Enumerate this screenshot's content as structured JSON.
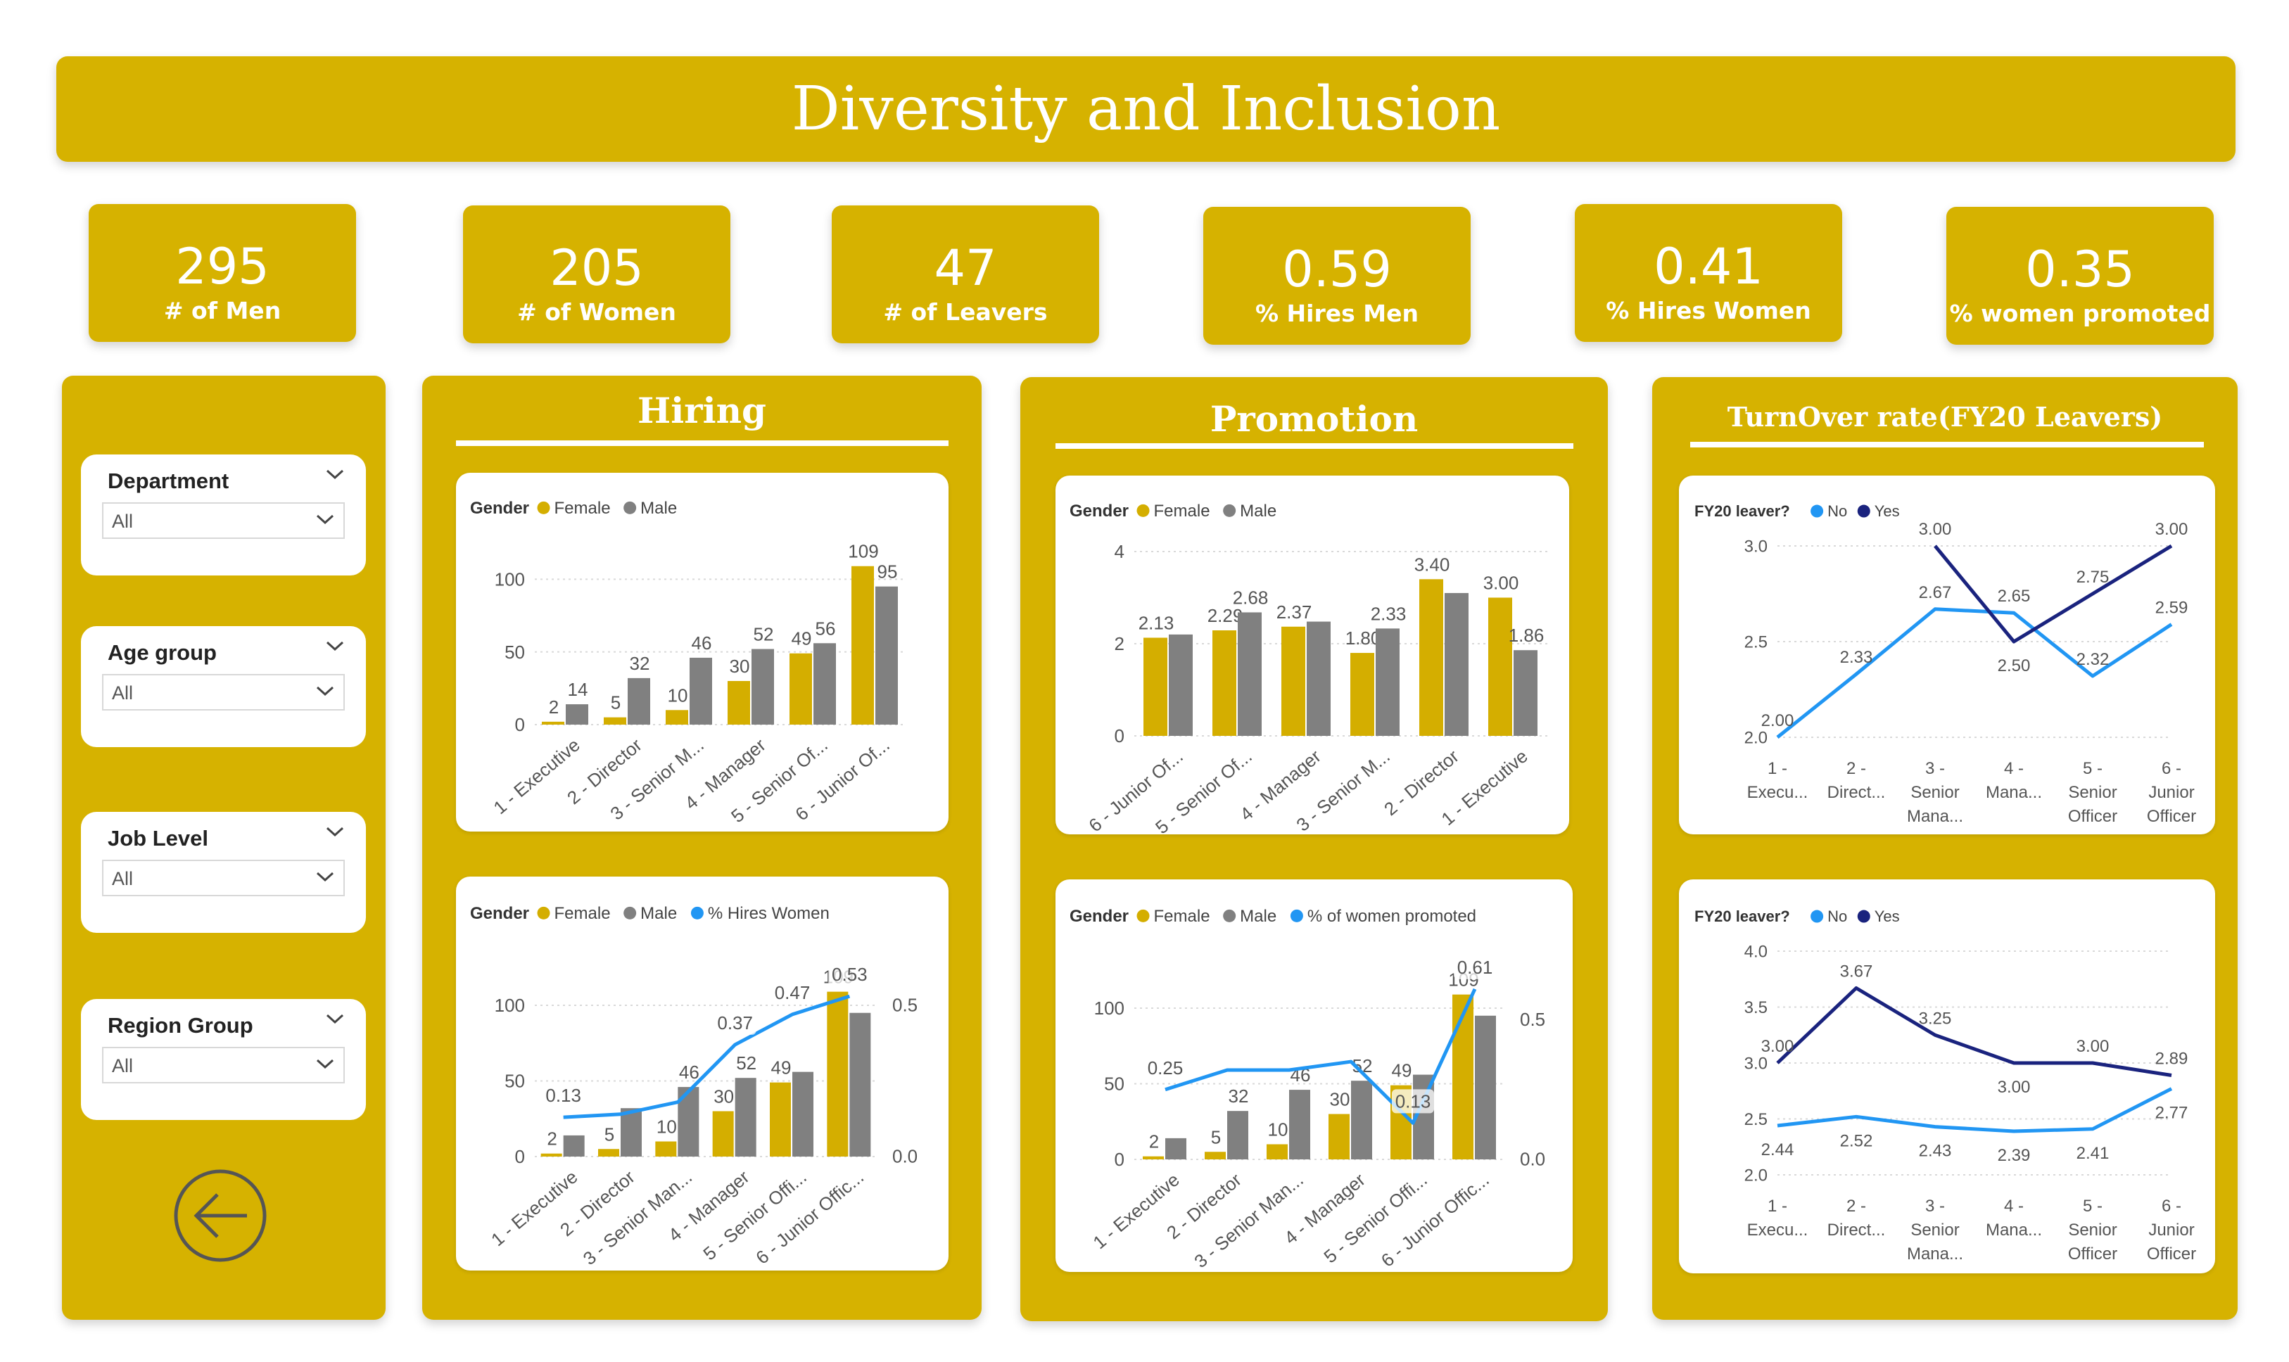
{
  "page": {
    "title": "Diversity and Inclusion"
  },
  "colors": {
    "gold": "#D6B200",
    "female": "#D4AE00",
    "male": "#808080",
    "line_light": "#2196F3",
    "line_dark": "#1A237E"
  },
  "kpis": [
    {
      "value": "295",
      "label": "# of Men"
    },
    {
      "value": "205",
      "label": "# of Women"
    },
    {
      "value": "47",
      "label": "# of Leavers"
    },
    {
      "value": "0.59",
      "label": "% Hires Men"
    },
    {
      "value": "0.41",
      "label": "% Hires Women"
    },
    {
      "value": "0.35",
      "label": "% women promoted"
    }
  ],
  "filters": [
    {
      "title": "Department",
      "value": "All"
    },
    {
      "title": "Age group",
      "value": "All"
    },
    {
      "title": "Job Level",
      "value": "All"
    },
    {
      "title": "Region Group",
      "value": "All"
    }
  ],
  "icons": {
    "back": "back-arrow-icon",
    "chevron": "chevron-down-icon"
  },
  "panels": {
    "hiring": "Hiring",
    "promotion": "Promotion",
    "turnover": "TurnOver rate(FY20 Leavers)"
  },
  "chart_data": [
    {
      "id": "hiring_bar",
      "type": "bar",
      "legend_title": "Gender",
      "categories": [
        "1 - Executive",
        "2 - Director",
        "3 - Senior M...",
        "4 - Manager",
        "5 - Senior Of...",
        "6 - Junior Of..."
      ],
      "series": [
        {
          "name": "Female",
          "values": [
            2,
            5,
            10,
            30,
            49,
            109
          ]
        },
        {
          "name": "Male",
          "values": [
            14,
            32,
            46,
            52,
            56,
            95
          ]
        }
      ],
      "yticks": [
        "0",
        "50",
        "100"
      ],
      "ylim": [
        0,
        120
      ]
    },
    {
      "id": "hiring_combo",
      "type": "bar",
      "legend_title": "Gender",
      "categories": [
        "1 - Executive",
        "2 - Director",
        "3 - Senior Man...",
        "4 - Manager",
        "5 - Senior Offi...",
        "6 - Junior Offic..."
      ],
      "series": [
        {
          "name": "Female",
          "values": [
            2,
            5,
            10,
            30,
            49,
            109
          ]
        },
        {
          "name": "Male",
          "values": [
            14,
            32,
            46,
            52,
            56,
            95
          ]
        },
        {
          "name": "% Hires Women",
          "values": [
            0.13,
            0.14,
            0.18,
            0.37,
            0.47,
            0.53
          ],
          "axis": "right"
        }
      ],
      "yticks": [
        "0",
        "50",
        "100"
      ],
      "ylim": [
        0,
        120
      ],
      "y2ticks": [
        "0.0",
        "0.5"
      ],
      "y2lim": [
        0,
        0.6
      ],
      "labels": {
        "female": [
          "2",
          "5",
          "10",
          "30",
          "49",
          "109"
        ],
        "male": [
          "",
          "",
          "46",
          "52",
          "",
          ""
        ],
        "line": [
          "0.13",
          "",
          "",
          "0.37",
          "0.47",
          "0.53"
        ]
      }
    },
    {
      "id": "promotion_bar",
      "type": "bar",
      "legend_title": "Gender",
      "categories": [
        "6 - Junior Of...",
        "5 - Senior Of...",
        "4 - Manager",
        "3 - Senior M...",
        "2 - Director",
        "1 - Executive"
      ],
      "series": [
        {
          "name": "Female",
          "values": [
            2.13,
            2.29,
            2.37,
            1.8,
            3.4,
            3.0
          ]
        },
        {
          "name": "Male",
          "values": [
            2.2,
            2.68,
            2.48,
            2.33,
            3.1,
            1.86
          ]
        }
      ],
      "yticks": [
        "0",
        "2",
        "4"
      ],
      "ylim": [
        0,
        4
      ],
      "labels": {
        "female": [
          "2.13",
          "2.29",
          "2.37",
          "1.80",
          "3.40",
          "3.00"
        ],
        "male": [
          "",
          "2.68",
          "",
          "2.33",
          "",
          "1.86"
        ]
      }
    },
    {
      "id": "promotion_combo",
      "type": "bar",
      "legend_title": "Gender",
      "categories": [
        "1 - Executive",
        "2 - Director",
        "3 - Senior Man...",
        "4 - Manager",
        "5 - Senior Offi...",
        "6 - Junior Offic..."
      ],
      "series": [
        {
          "name": "Female",
          "values": [
            2,
            5,
            10,
            30,
            49,
            109
          ]
        },
        {
          "name": "Male",
          "values": [
            14,
            32,
            46,
            52,
            56,
            95
          ]
        },
        {
          "name": "% of women promoted",
          "values": [
            0.25,
            0.32,
            0.32,
            0.35,
            0.13,
            0.61
          ],
          "axis": "right"
        }
      ],
      "yticks": [
        "0",
        "50",
        "100"
      ],
      "ylim": [
        0,
        120
      ],
      "y2ticks": [
        "0.0",
        "0.5"
      ],
      "y2lim": [
        0,
        0.65
      ],
      "labels": {
        "female": [
          "2",
          "5",
          "10",
          "30",
          "49",
          "109"
        ],
        "male": [
          "",
          "32",
          "46",
          "52",
          "",
          ""
        ],
        "line": [
          "0.25",
          "",
          "",
          "",
          "0.13",
          "0.61"
        ]
      }
    },
    {
      "id": "turnover_1",
      "type": "line",
      "legend_title": "FY20 leaver?",
      "categories": [
        "1 -\nExecu...",
        "2 -\nDirect...",
        "3 -\nSenior\nMana...",
        "4 -\nMana...",
        "5 -\nSenior\nOfficer",
        "6 -\nJunior\nOfficer"
      ],
      "series": [
        {
          "name": "No",
          "values": [
            2.0,
            2.33,
            2.67,
            2.65,
            2.32,
            2.59
          ]
        },
        {
          "name": "Yes",
          "values": [
            null,
            null,
            3.0,
            2.5,
            2.75,
            3.0
          ]
        }
      ],
      "yticks": [
        "2.0",
        "2.5",
        "3.0"
      ],
      "ylim": [
        2.0,
        3.0
      ]
    },
    {
      "id": "turnover_2",
      "type": "line",
      "legend_title": "FY20 leaver?",
      "categories": [
        "1 -\nExecu...",
        "2 -\nDirect...",
        "3 -\nSenior\nMana...",
        "4 -\nMana...",
        "5 -\nSenior\nOfficer",
        "6 -\nJunior\nOfficer"
      ],
      "series": [
        {
          "name": "No",
          "values": [
            2.44,
            2.52,
            2.43,
            2.39,
            2.41,
            2.77
          ]
        },
        {
          "name": "Yes",
          "values": [
            3.0,
            3.67,
            3.25,
            3.0,
            3.0,
            2.89
          ]
        }
      ],
      "yticks": [
        "2.0",
        "2.5",
        "3.0",
        "3.5",
        "4.0"
      ],
      "ylim": [
        2.0,
        4.0
      ]
    }
  ]
}
